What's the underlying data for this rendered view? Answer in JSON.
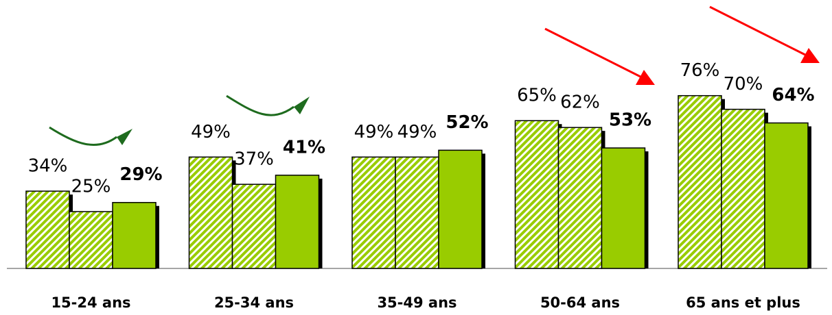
{
  "chart_data": {
    "type": "bar",
    "categories": [
      "15-24 ans",
      "25-34 ans",
      "35-49 ans",
      "50-64 ans",
      "65 ans et plus"
    ],
    "series": [
      {
        "color": "#99cc00",
        "hatched": true,
        "bold_labels": false,
        "values": [
          34,
          49,
          49,
          65,
          76
        ],
        "value_labels": [
          "34%",
          "49%",
          "49%",
          "65%",
          "76%"
        ]
      },
      {
        "color": "#99cc00",
        "hatched": true,
        "bold_labels": false,
        "values": [
          25,
          37,
          49,
          62,
          70
        ],
        "value_labels": [
          "25%",
          "37%",
          "49%",
          "62%",
          "70%"
        ]
      },
      {
        "color": "#99cc00",
        "hatched": false,
        "bold_labels": true,
        "values": [
          29,
          41,
          52,
          53,
          64
        ],
        "value_labels": [
          "29%",
          "41%",
          "52%",
          "53%",
          "64%"
        ]
      }
    ]
  }
}
